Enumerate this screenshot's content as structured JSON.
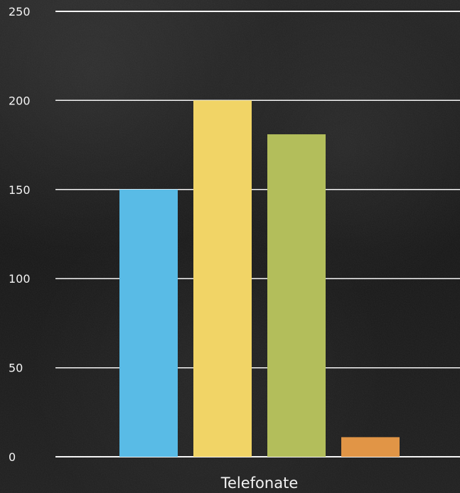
{
  "chart_data": {
    "type": "bar",
    "categories": [
      "Telefonate"
    ],
    "series": [
      {
        "values": [
          150
        ],
        "color": "#59bbe6"
      },
      {
        "values": [
          200
        ],
        "color": "#f1d466"
      },
      {
        "values": [
          181
        ],
        "color": "#b3be5b"
      },
      {
        "values": [
          11
        ],
        "color": "#e19546"
      }
    ],
    "y_ticks": [
      "0",
      "50",
      "100",
      "150",
      "200",
      "250"
    ],
    "y_tick_values": [
      0,
      50,
      100,
      150,
      200,
      250
    ],
    "ylim": [
      0,
      250
    ],
    "grid": true,
    "legend": "none",
    "title": "",
    "xlabel": "",
    "ylabel": ""
  }
}
